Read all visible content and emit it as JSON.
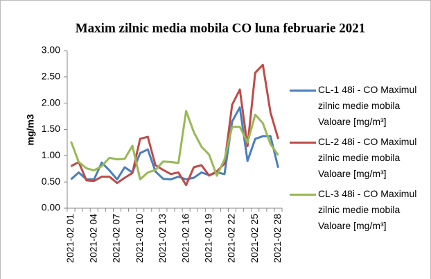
{
  "chart_data": {
    "type": "line",
    "title": "Maxim zilnic media mobila CO luna februarie 2021",
    "y_label": "mg/m3",
    "categories": [
      "2021-02 01",
      null,
      null,
      "2021-02 04",
      null,
      null,
      "2021-02 07",
      null,
      null,
      "2021-02 10",
      null,
      null,
      "2021-02 13",
      null,
      null,
      "2021-02 16",
      null,
      null,
      "2021-02 19",
      null,
      null,
      "2021-02 22",
      null,
      null,
      "2021-02 25",
      null,
      null,
      "2021-02 28"
    ],
    "ylim": [
      0,
      3
    ],
    "yticks": [
      {
        "value": 0,
        "label": "0.00"
      },
      {
        "value": 0.5,
        "label": "0.50"
      },
      {
        "value": 1,
        "label": "1.00"
      },
      {
        "value": 1.5,
        "label": "1.50"
      },
      {
        "value": 2,
        "label": "2.00"
      },
      {
        "value": 2.5,
        "label": "2.50"
      },
      {
        "value": 3,
        "label": "3.00"
      }
    ],
    "grid": false,
    "legend": "right",
    "series": [
      {
        "name": "CL-1 48i - CO Maximul zilnic medie mobila Valoare [mg/m³]",
        "color": "#4a7ebb",
        "values": [
          0.55,
          0.68,
          0.55,
          0.55,
          0.87,
          0.72,
          0.55,
          0.78,
          0.68,
          1.05,
          1.12,
          0.7,
          0.56,
          0.55,
          0.6,
          0.55,
          0.58,
          0.68,
          0.63,
          0.68,
          0.65,
          1.65,
          1.92,
          0.9,
          1.32,
          1.37,
          1.37,
          0.77
        ]
      },
      {
        "name": "CL-2 48i - CO Maximul zilnic medie mobila Valoare [mg/m³]",
        "color": "#be4b48",
        "values": [
          0.8,
          0.88,
          0.53,
          0.52,
          0.6,
          0.6,
          0.48,
          0.58,
          0.67,
          1.32,
          1.36,
          0.82,
          0.73,
          0.65,
          0.68,
          0.44,
          0.78,
          0.82,
          0.62,
          0.7,
          0.85,
          1.97,
          2.26,
          1.18,
          2.58,
          2.73,
          1.82,
          1.32
        ]
      },
      {
        "name": "CL-3 48i - CO Maximul zilnic medie mobila Valoare [mg/m³]",
        "color": "#98b954",
        "values": [
          1.27,
          0.88,
          0.76,
          0.72,
          0.8,
          0.96,
          0.93,
          0.94,
          1.19,
          0.55,
          0.68,
          0.73,
          0.89,
          0.88,
          0.86,
          1.85,
          1.45,
          1.17,
          1.02,
          0.62,
          0.93,
          1.55,
          1.55,
          1.25,
          1.78,
          1.62,
          1.22,
          1.01
        ]
      }
    ]
  }
}
